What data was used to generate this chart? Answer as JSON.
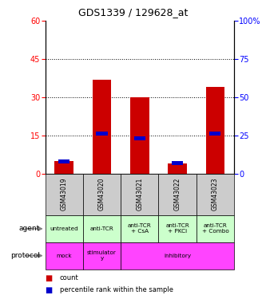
{
  "title": "GDS1339 / 129628_at",
  "samples": [
    "GSM43019",
    "GSM43020",
    "GSM43021",
    "GSM43022",
    "GSM43023"
  ],
  "count_values": [
    5,
    37,
    30,
    4,
    34
  ],
  "percentile_values": [
    8,
    26,
    23,
    7,
    26
  ],
  "ylim_left": [
    0,
    60
  ],
  "ylim_right": [
    0,
    100
  ],
  "yticks_left": [
    0,
    15,
    30,
    45,
    60
  ],
  "yticks_right": [
    0,
    25,
    50,
    75,
    100
  ],
  "bar_color_red": "#cc0000",
  "bar_color_blue": "#0000cc",
  "agent_labels": [
    "untreated",
    "anti-TCR",
    "anti-TCR\n+ CsA",
    "anti-TCR\n+ PKCi",
    "anti-TCR\n+ Combo"
  ],
  "agent_bg": "#ccffcc",
  "agent_row_label": "agent",
  "protocol_bg": "#ff44ff",
  "protocol_row_label": "protocol",
  "sample_bg": "#cccccc",
  "legend_count_color": "#cc0000",
  "legend_pct_color": "#0000cc",
  "legend_count_label": "count",
  "legend_pct_label": "percentile rank within the sample",
  "bar_width": 0.5,
  "background_color": "#ffffff"
}
